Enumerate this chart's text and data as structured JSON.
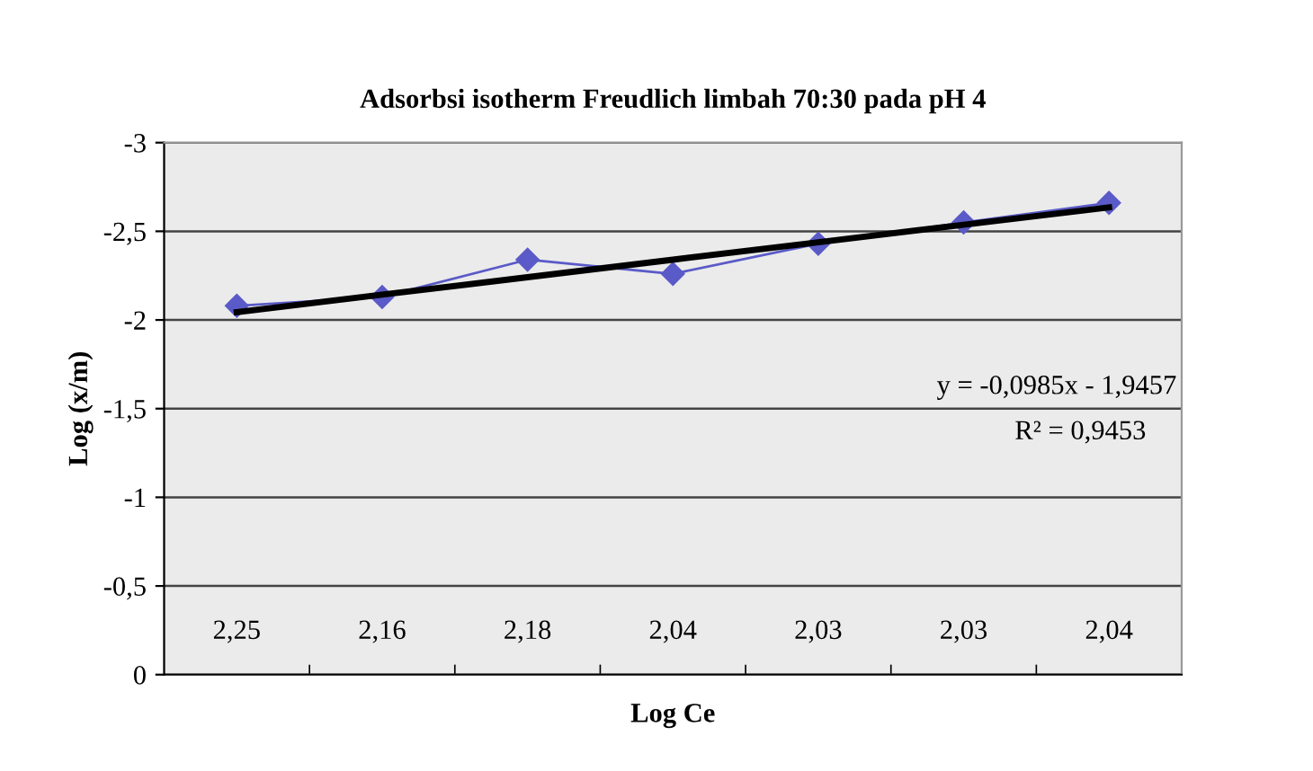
{
  "chart_data": {
    "type": "line",
    "title": "Adsorbsi isotherm Freudlich limbah 70:30 pada pH 4",
    "xlabel": "Log Ce",
    "ylabel": "Log (x/m)",
    "categories": [
      "2,25",
      "2,16",
      "2,18",
      "2,04",
      "2,03",
      "2,03",
      "2,04"
    ],
    "series": [
      {
        "color": "#5a5ac8",
        "values": [
          -2.08,
          -2.13,
          -2.34,
          -2.26,
          -2.43,
          -2.55,
          -2.66
        ],
        "marker": "diamond"
      },
      {
        "color": "#000000",
        "values": [
          -2.044,
          -2.143,
          -2.241,
          -2.34,
          -2.438,
          -2.537,
          -2.635
        ],
        "marker": "none"
      }
    ],
    "ylim": [
      0,
      -3
    ],
    "yticks": [
      0,
      {
        "value": -0.5,
        "label": "-0,5"
      },
      -1,
      {
        "value": -1.5,
        "label": "-1,5"
      },
      -2,
      {
        "value": -2.5,
        "label": "-2,5"
      },
      -3
    ],
    "grid": "y",
    "annotations": [
      "y = -0,0985x - 1,9457",
      "R² = 0,9453"
    ]
  }
}
